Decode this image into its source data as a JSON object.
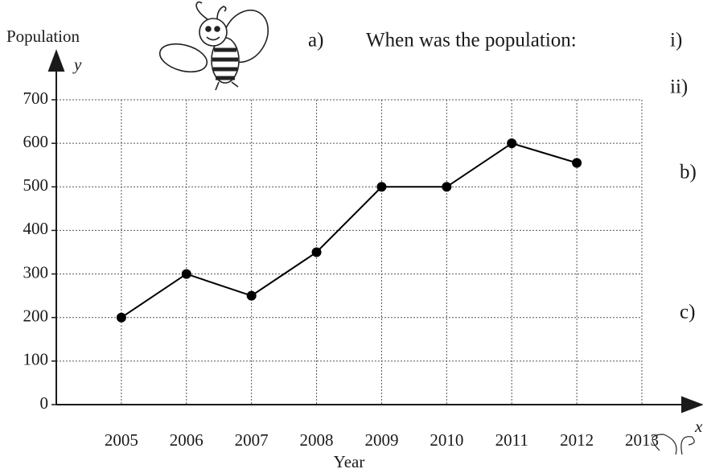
{
  "chart_data": {
    "type": "line",
    "x_label": "Year",
    "y_label": "Population",
    "x_symbol": "x",
    "y_symbol": "y",
    "annotations": [
      "a)",
      "When was the population:",
      "i)",
      "ii)",
      "b)",
      "c)"
    ],
    "x": [
      2005,
      2006,
      2007,
      2008,
      2009,
      2010,
      2011,
      2012
    ],
    "series": [
      {
        "name": "Population",
        "color": "#000000",
        "values": [
          200,
          300,
          250,
          350,
          500,
          500,
          600,
          555
        ]
      }
    ],
    "xlim": [
      2004,
      2013
    ],
    "xticks": [
      2005,
      2006,
      2007,
      2008,
      2009,
      2010,
      2011,
      2012,
      2013
    ],
    "ylim": [
      0,
      700
    ],
    "yticks": [
      0,
      100,
      200,
      300,
      400,
      500,
      600,
      700
    ],
    "grid": true
  }
}
